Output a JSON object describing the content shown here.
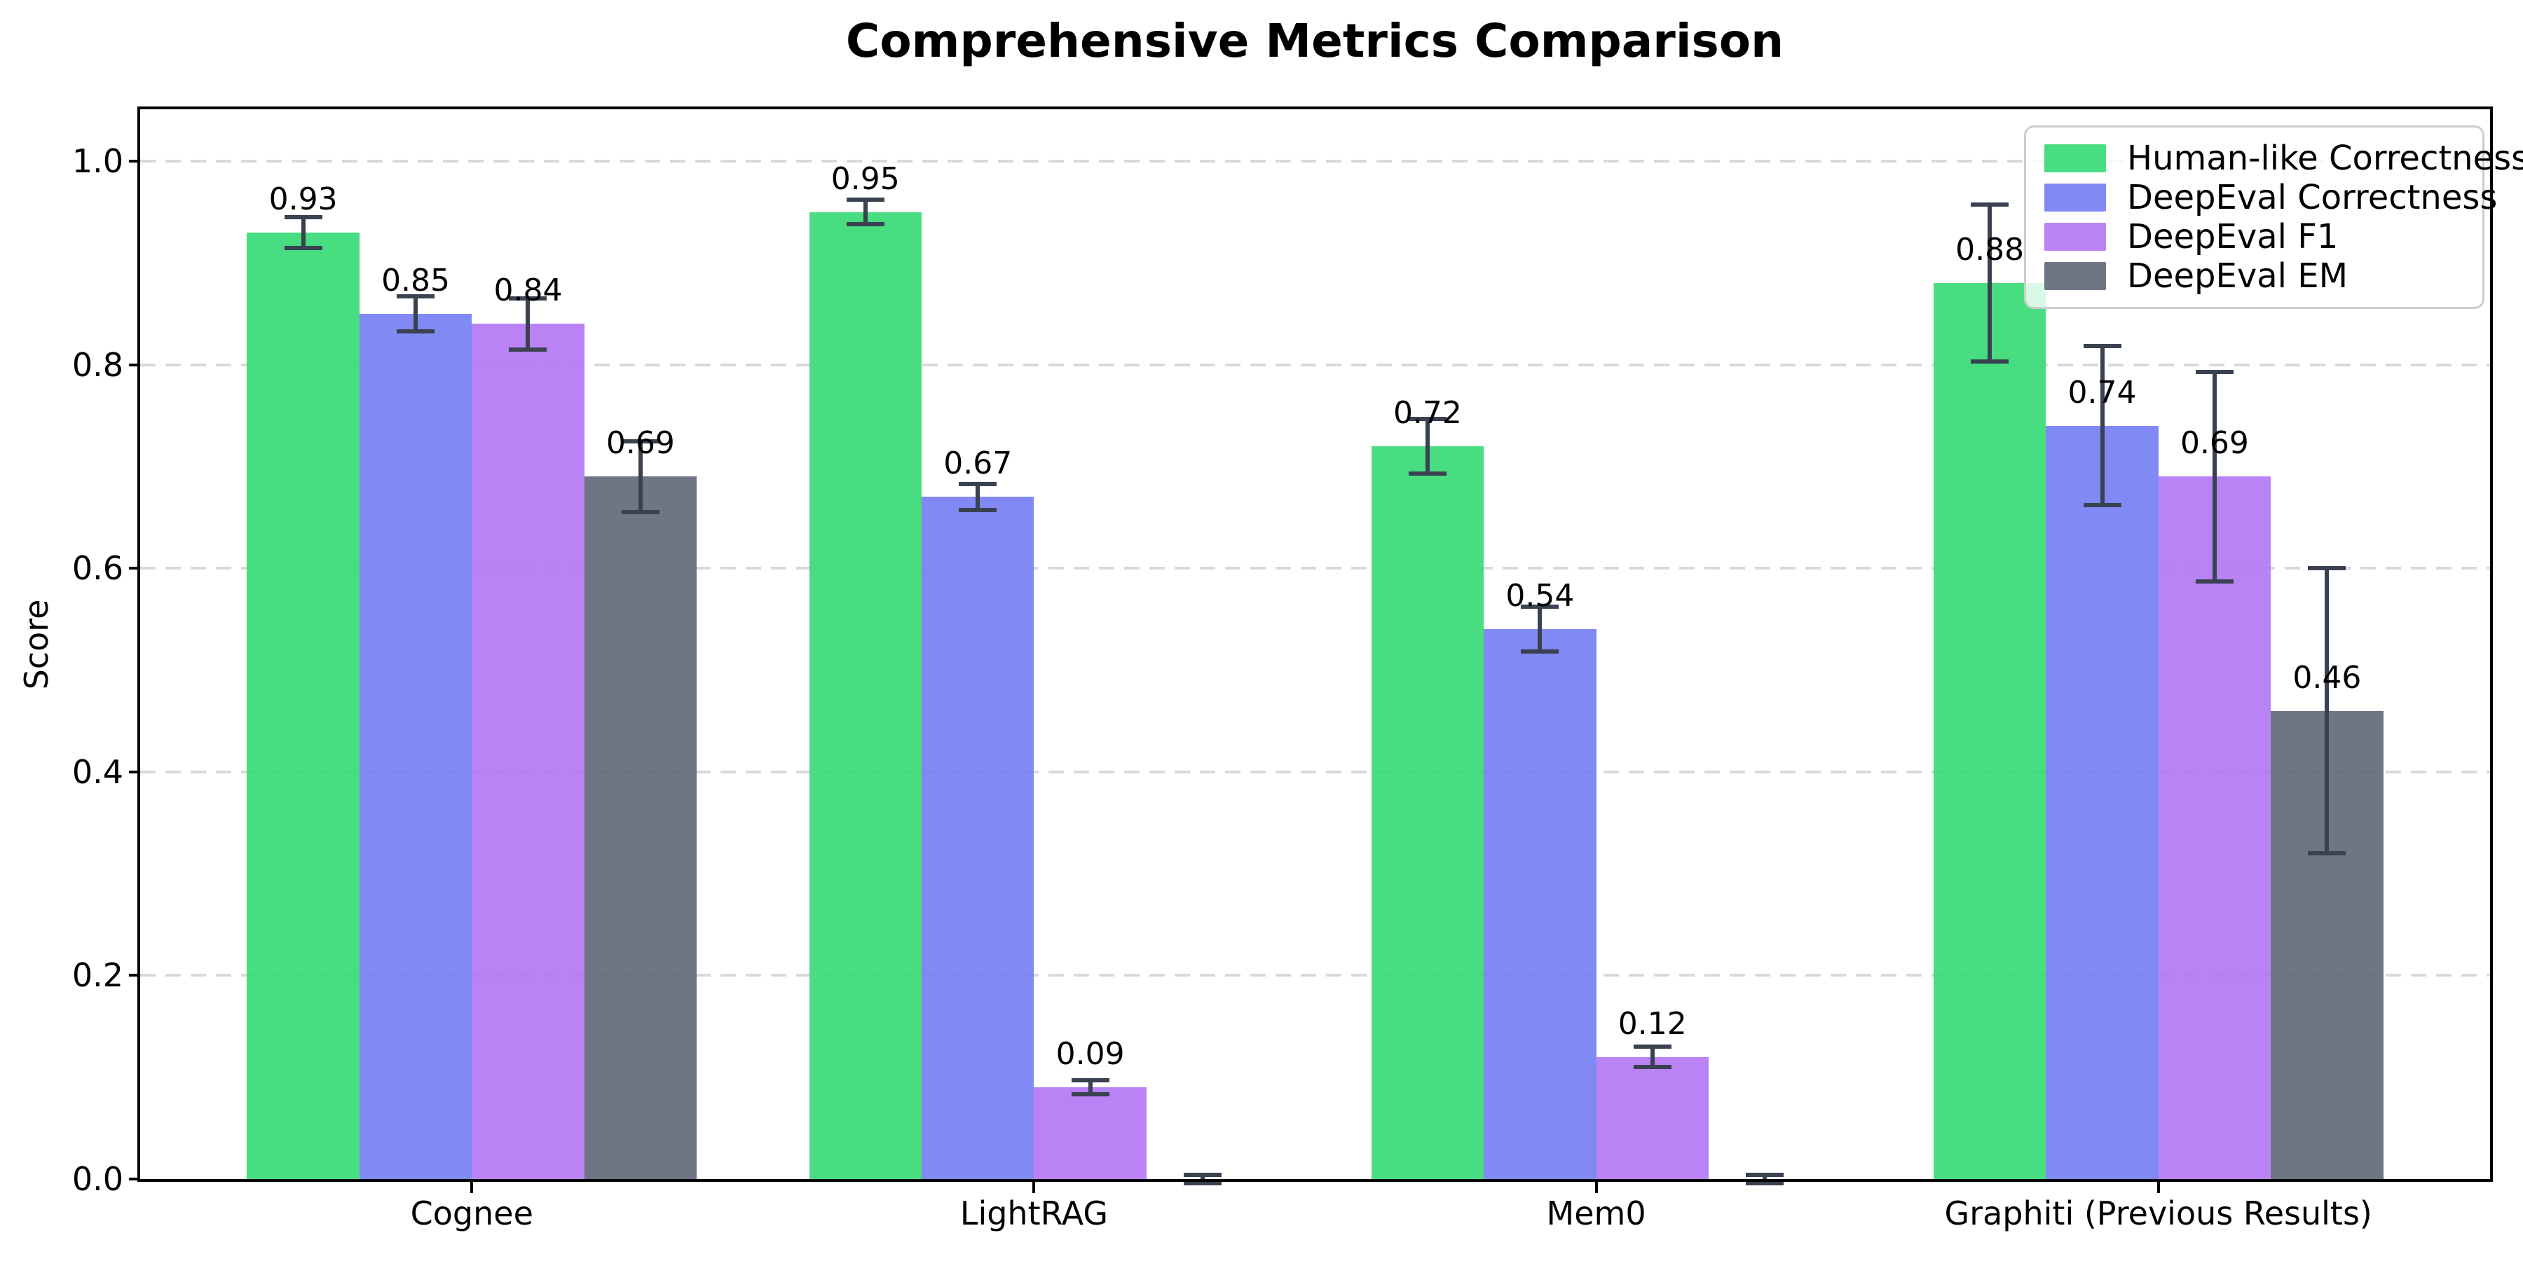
{
  "chart_data": {
    "type": "bar",
    "title": "Comprehensive Metrics Comparison",
    "ylabel": "Score",
    "xlabel": "",
    "categories": [
      "Cognee",
      "LightRAG",
      "Mem0",
      "Graphiti (Previous Results)"
    ],
    "series": [
      {
        "name": "Human-like Correctness",
        "color": "#47dd80",
        "values": [
          0.93,
          0.95,
          0.72,
          0.88
        ],
        "errors": [
          0.015,
          0.012,
          0.027,
          0.077
        ]
      },
      {
        "name": "DeepEval Correctness",
        "color": "#8189f5",
        "values": [
          0.85,
          0.67,
          0.54,
          0.74
        ],
        "errors": [
          0.017,
          0.013,
          0.022,
          0.078
        ]
      },
      {
        "name": "DeepEval F1",
        "color": "#ba83f5",
        "values": [
          0.84,
          0.09,
          0.12,
          0.69
        ],
        "errors": [
          0.025,
          0.007,
          0.01,
          0.103
        ]
      },
      {
        "name": "DeepEval EM",
        "color": "#6e7585",
        "values": [
          0.69,
          0.0,
          0.0,
          0.46
        ],
        "errors": [
          0.035,
          0.004,
          0.004,
          0.14
        ]
      }
    ],
    "value_label_format": "2-decimals",
    "yticks": [
      "0.0",
      "0.2",
      "0.4",
      "0.6",
      "0.8",
      "1.0"
    ],
    "ytick_values": [
      0.0,
      0.2,
      0.4,
      0.6,
      0.8,
      1.0
    ],
    "ylim": [
      0,
      1.051
    ],
    "xlim": [
      -0.59,
      3.59
    ],
    "bar_width": 0.2,
    "grid": "horizontal-dashed",
    "legend_position": "upper-right",
    "colors": {
      "error_bar": "#3a4150",
      "grid": "#d9d9d9",
      "spine": "#000000",
      "text": "#000000",
      "legend_border": "#cccccc",
      "background": "#ffffff"
    }
  }
}
